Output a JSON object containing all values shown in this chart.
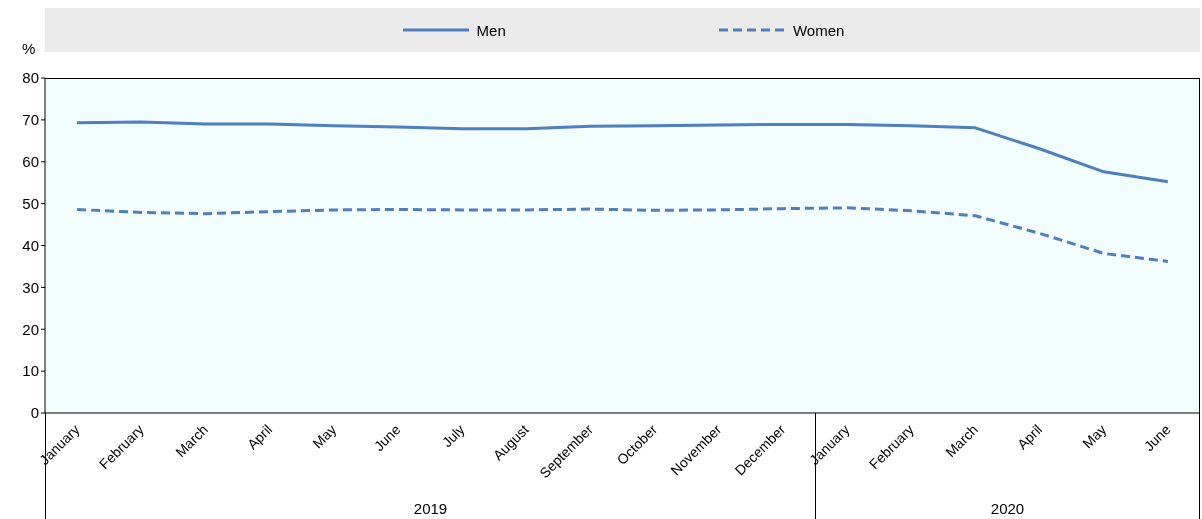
{
  "chart_data": {
    "type": "line",
    "ylabel": "%",
    "categories": [
      "January",
      "February",
      "March",
      "April",
      "May",
      "June",
      "July",
      "August",
      "September",
      "October",
      "November",
      "December",
      "January",
      "February",
      "March",
      "April",
      "May",
      "June"
    ],
    "series": [
      {
        "name": "Men",
        "color": "#4f7fbe",
        "line_style": "solid",
        "values": [
          69.3,
          69.5,
          69.0,
          69.0,
          68.6,
          68.3,
          67.9,
          67.9,
          68.5,
          68.6,
          68.8,
          68.9,
          68.9,
          68.6,
          68.1,
          63.1,
          57.6,
          55.2
        ]
      },
      {
        "name": "Women",
        "color": "#4f7fbe",
        "line_style": "dashed",
        "values": [
          48.6,
          47.9,
          47.6,
          48.1,
          48.5,
          48.6,
          48.5,
          48.5,
          48.7,
          48.4,
          48.5,
          48.8,
          49.0,
          48.3,
          47.1,
          42.9,
          38.1,
          36.2
        ]
      }
    ],
    "ylim": [
      0,
      80
    ],
    "yticks": [
      0,
      10,
      20,
      30,
      40,
      50,
      60,
      70,
      80
    ],
    "grid": false,
    "legend": "top",
    "marker": "none",
    "annotations": [
      "2019",
      "2020"
    ]
  }
}
